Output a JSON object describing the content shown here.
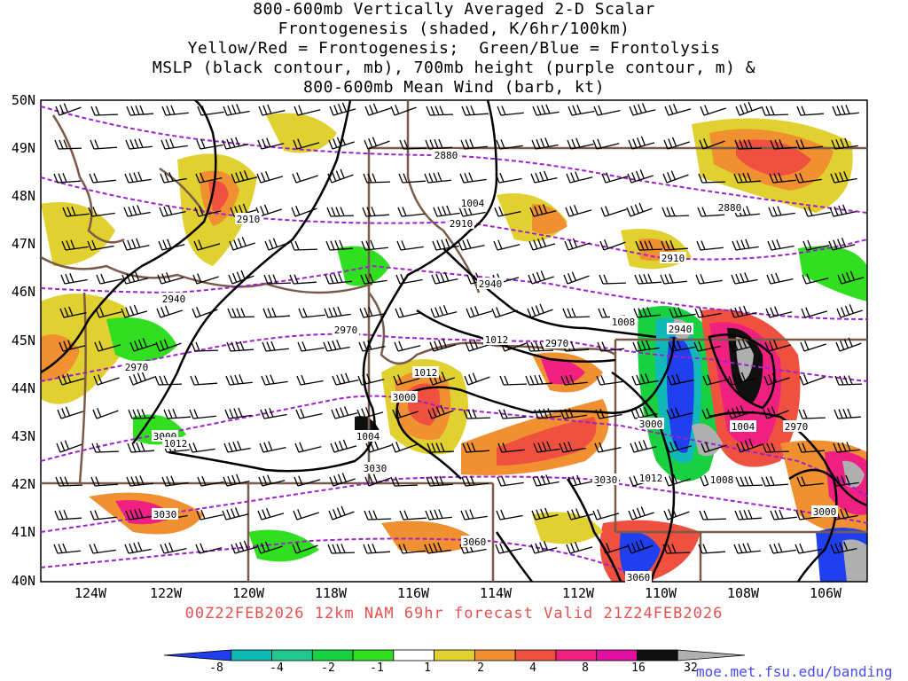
{
  "title_lines": [
    "800-600mb Vertically Averaged 2-D Scalar",
    "Frontogenesis (shaded, K/6hr/100km)",
    "Yellow/Red = Frontogenesis;  Green/Blue = Frontolysis",
    "MSLP (black contour, mb), 700mb height (purple contour, m) &",
    "800-600mb Mean Wind (barb, kt)"
  ],
  "lat_labels": [
    "50N",
    "49N",
    "48N",
    "47N",
    "46N",
    "45N",
    "44N",
    "43N",
    "42N",
    "41N",
    "40N"
  ],
  "lon_labels": [
    "124W",
    "122W",
    "120W",
    "118W",
    "116W",
    "114W",
    "112W",
    "110W",
    "108W",
    "106W"
  ],
  "valid_text": "00Z22FEB2026 12km NAM 69hr forecast Valid 21Z24FEB2026",
  "colorbar": {
    "labels": [
      "-8",
      "-4",
      "-2",
      "-1",
      "1",
      "2",
      "4",
      "8",
      "16",
      "32"
    ],
    "colors": [
      "#2040f0",
      "#10b8b8",
      "#20c890",
      "#18d040",
      "#30e020",
      "#ffffff",
      "#e0d030",
      "#f09030",
      "#f05040",
      "#f02080",
      "#e010a0",
      "#101010",
      "#b0b0b0"
    ]
  },
  "contour_labels": {
    "height": [
      "2880",
      "2910",
      "2910",
      "2880",
      "2910",
      "2940",
      "2940",
      "2940",
      "2970",
      "2970",
      "2970",
      "2970",
      "3000",
      "3000",
      "3000",
      "3030",
      "3030",
      "3030",
      "3060",
      "3060",
      "3000",
      "2970"
    ],
    "mslp": [
      "1004",
      "1008",
      "1012",
      "1012",
      "1012",
      "1004",
      "1012",
      "1008",
      "1004",
      "1012"
    ]
  },
  "credit": "moe.met.fsu.edu/banding"
}
